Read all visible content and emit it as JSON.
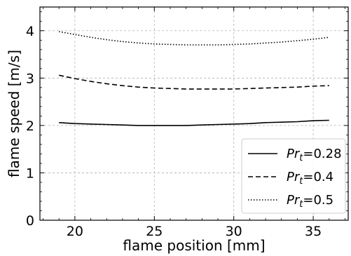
{
  "chart_data": {
    "type": "line",
    "title": "",
    "xlabel": "flame position [mm]",
    "ylabel": "flame speed [m/s]",
    "xlim": [
      17.8,
      37.2
    ],
    "ylim": [
      0,
      4.5
    ],
    "xticks": [
      20,
      25,
      30,
      35
    ],
    "yticks": [
      0,
      1,
      2,
      3,
      4
    ],
    "grid": true,
    "legend": "lower-right",
    "series": [
      {
        "name": "Pr_t=0.28",
        "legend_base": "Pr",
        "legend_sub": "t",
        "legend_value": "=0.28",
        "dash": "solid",
        "color": "#000000",
        "x": [
          19,
          20,
          21,
          22,
          23,
          24,
          25,
          26,
          27,
          28,
          29,
          30,
          31,
          32,
          33,
          34,
          35,
          36
        ],
        "y": [
          2.06,
          2.04,
          2.03,
          2.02,
          2.01,
          2.0,
          2.0,
          2.0,
          2.0,
          2.01,
          2.02,
          2.03,
          2.04,
          2.06,
          2.07,
          2.08,
          2.1,
          2.11
        ]
      },
      {
        "name": "Pr_t=0.4",
        "legend_base": "Pr",
        "legend_sub": "t",
        "legend_value": "=0.4",
        "dash": "dashed",
        "color": "#000000",
        "x": [
          19,
          20,
          21,
          22,
          23,
          24,
          25,
          26,
          27,
          28,
          29,
          30,
          31,
          32,
          33,
          34,
          35,
          36
        ],
        "y": [
          3.06,
          2.99,
          2.93,
          2.88,
          2.84,
          2.81,
          2.79,
          2.78,
          2.77,
          2.77,
          2.77,
          2.77,
          2.78,
          2.79,
          2.8,
          2.81,
          2.83,
          2.84
        ]
      },
      {
        "name": "Pr_t=0.5",
        "legend_base": "Pr",
        "legend_sub": "t",
        "legend_value": "=0.5",
        "dash": "dotted",
        "color": "#000000",
        "x": [
          19,
          20,
          21,
          22,
          23,
          24,
          25,
          26,
          27,
          28,
          29,
          30,
          31,
          32,
          33,
          34,
          35,
          36
        ],
        "y": [
          3.98,
          3.92,
          3.86,
          3.81,
          3.77,
          3.74,
          3.72,
          3.71,
          3.7,
          3.7,
          3.7,
          3.71,
          3.72,
          3.74,
          3.76,
          3.79,
          3.82,
          3.86
        ]
      }
    ]
  }
}
